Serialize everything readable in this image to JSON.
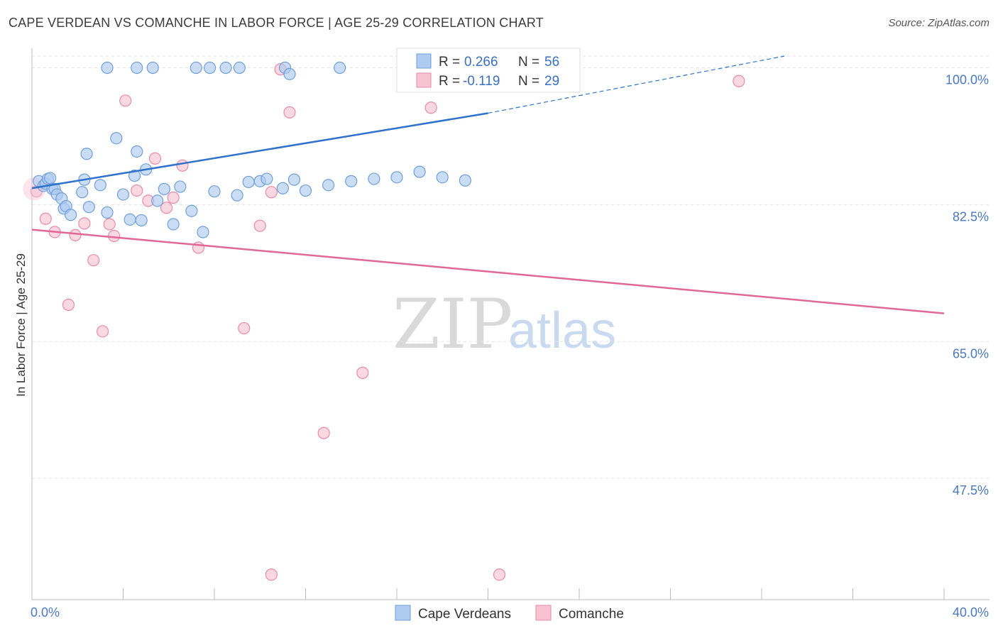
{
  "header": {
    "title": "CAPE VERDEAN VS COMANCHE IN LABOR FORCE | AGE 25-29 CORRELATION CHART",
    "source": "Source: ZipAtlas.com"
  },
  "watermark": {
    "zip": "ZIP",
    "atlas": "atlas"
  },
  "legend": {
    "series1": {
      "r_label": "R =",
      "r_value": "0.266",
      "n_label": "N =",
      "n_value": "56"
    },
    "series2": {
      "r_label": "R =",
      "r_value": "-0.119",
      "n_label": "N =",
      "n_value": "29"
    }
  },
  "colors": {
    "blue_fill": "#aecbf0",
    "blue_stroke": "#6e9fdb",
    "blue_line": "#2e72cc",
    "pink_fill": "#f7c3d3",
    "pink_stroke": "#e88aa8",
    "pink_line": "#e06896",
    "grid": "#e3e3e3",
    "axis": "#bbbbbb"
  },
  "chart_data": {
    "type": "scatter",
    "title": "CAPE VERDEAN VS COMANCHE IN LABOR FORCE | AGE 25-29 CORRELATION CHART",
    "xlabel": "",
    "ylabel": "In Labor Force | Age 25-29",
    "xlim": [
      0,
      40
    ],
    "ylim": [
      32,
      101.5
    ],
    "x_tick_labels": [
      "0.0%",
      "40.0%"
    ],
    "y_ticks": [
      {
        "value": 100.0,
        "label": "100.0%"
      },
      {
        "value": 82.5,
        "label": "82.5%"
      },
      {
        "value": 65.0,
        "label": "65.0%"
      },
      {
        "value": 47.5,
        "label": "47.5%"
      }
    ],
    "series": [
      {
        "name": "Cape Verdeans",
        "color": "#aecbf0",
        "trend": {
          "x0": 0,
          "y0": 84.6,
          "x1": 20,
          "y1": 94.2,
          "dash_to_x": 33,
          "dash_to_y": 101.5
        },
        "points": [
          [
            0.3,
            85.5
          ],
          [
            0.5,
            84.9
          ],
          [
            0.6,
            85.2
          ],
          [
            0.7,
            85.8
          ],
          [
            0.8,
            85.9
          ],
          [
            0.9,
            84.5
          ],
          [
            1.0,
            84.5
          ],
          [
            1.1,
            83.8
          ],
          [
            1.3,
            83.3
          ],
          [
            1.4,
            82.0
          ],
          [
            1.5,
            82.3
          ],
          [
            1.7,
            81.2
          ],
          [
            2.2,
            84.1
          ],
          [
            2.3,
            85.7
          ],
          [
            2.4,
            89.0
          ],
          [
            2.5,
            82.2
          ],
          [
            3.0,
            85.0
          ],
          [
            3.3,
            81.5
          ],
          [
            3.7,
            91.0
          ],
          [
            4.0,
            83.8
          ],
          [
            4.3,
            80.6
          ],
          [
            4.5,
            86.2
          ],
          [
            4.6,
            89.3
          ],
          [
            4.8,
            80.5
          ],
          [
            5.0,
            87.0
          ],
          [
            5.5,
            83.0
          ],
          [
            5.8,
            84.5
          ],
          [
            6.2,
            80.0
          ],
          [
            6.5,
            84.8
          ],
          [
            7.0,
            81.7
          ],
          [
            7.5,
            79.0
          ],
          [
            8.0,
            84.2
          ],
          [
            9.0,
            83.7
          ],
          [
            9.5,
            85.4
          ],
          [
            10.0,
            85.5
          ],
          [
            10.3,
            85.8
          ],
          [
            11.0,
            84.6
          ],
          [
            11.5,
            85.7
          ],
          [
            12.0,
            84.3
          ],
          [
            13.0,
            85.0
          ],
          [
            14.0,
            85.5
          ],
          [
            15.0,
            85.8
          ],
          [
            16.0,
            86.0
          ],
          [
            17.0,
            86.7
          ],
          [
            18.0,
            86.0
          ],
          [
            19.0,
            85.6
          ],
          [
            3.3,
            100.0
          ],
          [
            4.6,
            100.0
          ],
          [
            5.3,
            100.0
          ],
          [
            7.2,
            100.0
          ],
          [
            7.8,
            100.0
          ],
          [
            8.5,
            100.0
          ],
          [
            9.1,
            100.0
          ],
          [
            11.1,
            100.0
          ],
          [
            11.3,
            99.2
          ],
          [
            13.5,
            100.0
          ]
        ]
      },
      {
        "name": "Comanche",
        "color": "#f7c3d3",
        "trend": {
          "x0": 0,
          "y0": 79.3,
          "x1": 40,
          "y1": 68.6
        },
        "points": [
          [
            0.2,
            84.2
          ],
          [
            0.6,
            80.7
          ],
          [
            1.0,
            79.0
          ],
          [
            1.6,
            69.7
          ],
          [
            1.9,
            78.6
          ],
          [
            2.3,
            80.1
          ],
          [
            2.7,
            75.4
          ],
          [
            3.1,
            66.3
          ],
          [
            3.4,
            80.0
          ],
          [
            3.6,
            78.5
          ],
          [
            4.1,
            95.8
          ],
          [
            4.6,
            84.3
          ],
          [
            5.1,
            83.0
          ],
          [
            5.4,
            88.4
          ],
          [
            5.9,
            82.1
          ],
          [
            6.2,
            83.4
          ],
          [
            6.6,
            87.5
          ],
          [
            7.3,
            77.0
          ],
          [
            9.3,
            66.7
          ],
          [
            10.0,
            79.8
          ],
          [
            10.5,
            84.1
          ],
          [
            10.9,
            99.8
          ],
          [
            11.3,
            94.3
          ],
          [
            12.8,
            53.3
          ],
          [
            14.5,
            61.0
          ],
          [
            17.5,
            94.9
          ],
          [
            10.5,
            35.2
          ],
          [
            20.5,
            35.2
          ],
          [
            31.0,
            98.3
          ]
        ]
      }
    ]
  },
  "bottom_legend": {
    "item1": "Cape Verdeans",
    "item2": "Comanche"
  }
}
